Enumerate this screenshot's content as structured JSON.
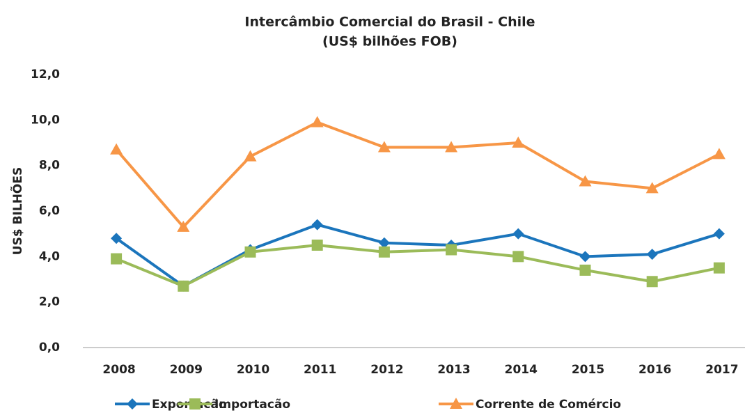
{
  "chart_data": {
    "type": "line",
    "title": [
      "Intercâmbio Comercial do Brasil - Chile",
      "(US$ bilhões FOB)"
    ],
    "y_label": "US$ BILHÕES",
    "categories": [
      "2008",
      "2009",
      "2010",
      "2011",
      "2012",
      "2013",
      "2014",
      "2015",
      "2016",
      "2017"
    ],
    "series": [
      {
        "name": "Exportacão",
        "color": "#1b75bc",
        "marker": "diamond",
        "values": [
          4.8,
          2.7,
          4.3,
          5.4,
          4.6,
          4.5,
          5.0,
          4.0,
          4.1,
          5.0
        ]
      },
      {
        "name": "Importacão",
        "color": "#9bbb59",
        "marker": "square",
        "values": [
          3.9,
          2.7,
          4.2,
          4.5,
          4.2,
          4.3,
          4.0,
          3.4,
          2.9,
          3.5
        ]
      },
      {
        "name": "Corrente de Comércio",
        "color": "#f79646",
        "marker": "triangle",
        "values": [
          8.7,
          5.3,
          8.4,
          9.9,
          8.8,
          8.8,
          9.0,
          7.3,
          7.0,
          8.5
        ]
      }
    ],
    "ylim": [
      0,
      12
    ],
    "yticks": [
      {
        "value": 0,
        "label": "0,0"
      },
      {
        "value": 2,
        "label": "2,0"
      },
      {
        "value": 4,
        "label": "4,0"
      },
      {
        "value": 6,
        "label": "6,0"
      },
      {
        "value": 8,
        "label": "8,0"
      },
      {
        "value": 10,
        "label": "10,0"
      },
      {
        "value": 12,
        "label": "12,0"
      }
    ],
    "grid": false,
    "legend": "bottom"
  }
}
